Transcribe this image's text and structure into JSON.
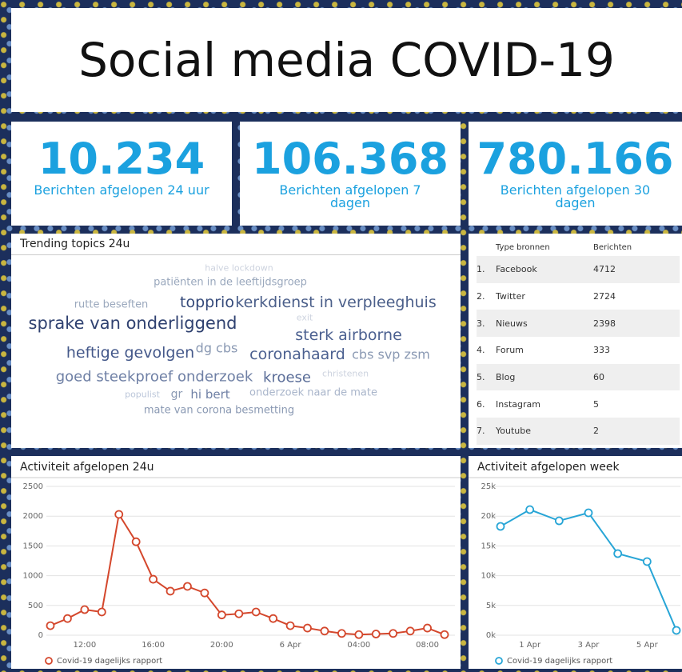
{
  "header": {
    "title": "Social media COVID-19"
  },
  "kpis": [
    {
      "value": "10.234",
      "label": "Berichten afgelopen 24 uur"
    },
    {
      "value": "106.368",
      "label": "Berichten afgelopen 7 dagen"
    },
    {
      "value": "780.166",
      "label": "Berichten afgelopen 30 dagen"
    }
  ],
  "wordcloud": {
    "title": "Trending topics 24u",
    "words": [
      "halve lockdown",
      "patiënten in de leeftijdsgroep",
      "rutte beseften",
      "topprio",
      "kerkdienst in verpleeghuis",
      "exit",
      "sprake van onderliggend",
      "sterk airborne",
      "heftige gevolgen",
      "dg cbs",
      "coronahaard",
      "cbs svp zsm",
      "goed steekproef onderzoek",
      "kroese",
      "christenen",
      "populist",
      "gr",
      "hi bert",
      "onderzoek naar de mate",
      "mate van corona besmetting"
    ]
  },
  "table": {
    "columns": [
      "Type bronnen",
      "Berichten"
    ],
    "rows": [
      {
        "rank": "1.",
        "source": "Facebook",
        "count": 4712
      },
      {
        "rank": "2.",
        "source": "Twitter",
        "count": 2724
      },
      {
        "rank": "3.",
        "source": "Nieuws",
        "count": 2398
      },
      {
        "rank": "4.",
        "source": "Forum",
        "count": 333
      },
      {
        "rank": "5.",
        "source": "Blog",
        "count": 60
      },
      {
        "rank": "6.",
        "source": "Instagram",
        "count": 5
      },
      {
        "rank": "7.",
        "source": "Youtube",
        "count": 2
      }
    ]
  },
  "chart_data": [
    {
      "type": "line",
      "title": "Activiteit afgelopen 24u",
      "categories": [
        null,
        null,
        "12:00",
        null,
        null,
        null,
        "16:00",
        null,
        null,
        null,
        "20:00",
        null,
        null,
        null,
        "6 Apr",
        null,
        null,
        null,
        "04:00",
        null,
        null,
        null,
        "08:00",
        null
      ],
      "series": [
        {
          "name": "Covid-19 dagelijks rapport",
          "color": "#d4472c",
          "values": [
            160,
            280,
            430,
            390,
            2030,
            1570,
            940,
            740,
            820,
            710,
            340,
            360,
            390,
            280,
            160,
            120,
            70,
            30,
            10,
            20,
            30,
            70,
            120,
            10
          ]
        }
      ],
      "ylim": [
        0,
        2500
      ],
      "yticks": [
        0,
        500,
        1000,
        1500,
        2000,
        2500
      ],
      "grid": true,
      "legend": "bottom"
    },
    {
      "type": "line",
      "title": "Activiteit afgelopen week",
      "categories": [
        null,
        "1 Apr",
        null,
        "3 Apr",
        null,
        "5 Apr",
        null
      ],
      "series": [
        {
          "name": "Covid-19 dagelijks rapport",
          "color": "#27a5d6",
          "values": [
            18280,
            21100,
            19220,
            20560,
            13710,
            12370,
            810
          ]
        }
      ],
      "ylim": [
        0,
        25000
      ],
      "yticks": [
        {
          "value": 0,
          "label": "0k"
        },
        {
          "value": 5000,
          "label": "5k"
        },
        {
          "value": 10000,
          "label": "10k"
        },
        {
          "value": 15000,
          "label": "15k"
        },
        {
          "value": 20000,
          "label": "20k"
        },
        {
          "value": 25000,
          "label": "25k"
        }
      ],
      "grid": true,
      "legend": "bottom"
    }
  ]
}
